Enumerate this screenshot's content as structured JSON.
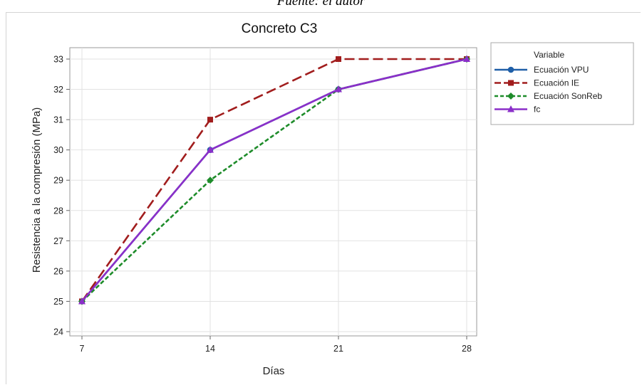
{
  "caption": "Fuente: el autor",
  "chart_data": {
    "type": "line",
    "title": "Concreto C3",
    "xlabel": "Días",
    "ylabel": "Resistencia a la compresión (MPa)",
    "x": [
      7,
      14,
      21,
      28
    ],
    "xticks": [
      "7",
      "14",
      "21",
      "28"
    ],
    "ylim": [
      24,
      33
    ],
    "yticks": [
      "24",
      "25",
      "26",
      "27",
      "28",
      "29",
      "30",
      "31",
      "32",
      "33"
    ],
    "grid": true,
    "legend_title": "Variable",
    "legend_position": "right",
    "series": [
      {
        "name": "Ecuación VPU",
        "values": [
          25,
          30,
          32,
          33
        ],
        "color": "#1f5fa8",
        "dash": "solid",
        "marker": "circle"
      },
      {
        "name": "Ecuación IE",
        "values": [
          25,
          31,
          33,
          33
        ],
        "color": "#a11d1d",
        "dash": "dashed",
        "marker": "square"
      },
      {
        "name": "Ecuación SonReb",
        "values": [
          25,
          29,
          32,
          33
        ],
        "color": "#1e8c2a",
        "dash": "dotted",
        "marker": "diamond"
      },
      {
        "name": "fc",
        "values": [
          25,
          30,
          32,
          33
        ],
        "color": "#8b2fc9",
        "dash": "solid",
        "marker": "triangle"
      }
    ]
  }
}
